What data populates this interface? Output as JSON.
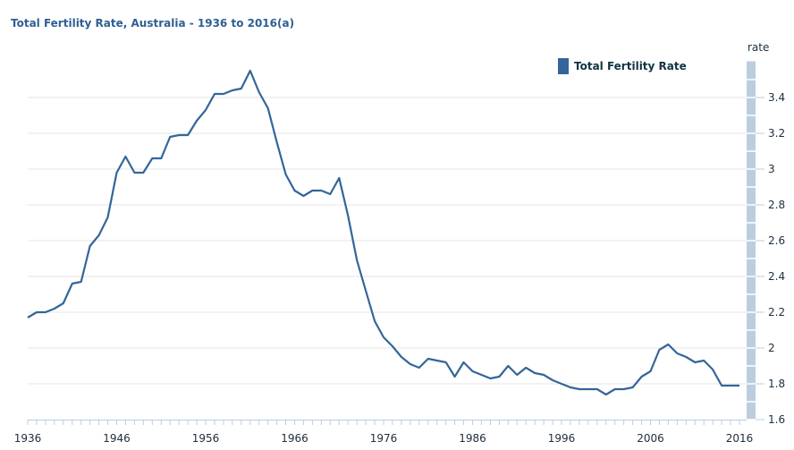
{
  "chart_data": {
    "type": "line",
    "title": "Total Fertility Rate, Australia - 1936 to 2016(a)",
    "ylabel": "rate",
    "xlim": [
      1936,
      2016
    ],
    "ylim": [
      1.6,
      3.6
    ],
    "x_tick_labels": [
      "1936",
      "1946",
      "1956",
      "1966",
      "1976",
      "1986",
      "1996",
      "2006",
      "2016"
    ],
    "y_tick_labels": [
      "1.6",
      "1.8",
      "2",
      "2.2",
      "2.4",
      "2.6",
      "2.8",
      "3",
      "3.2",
      "3.4"
    ],
    "grid": true,
    "legend_placement": "top-right",
    "colors": {
      "line": "#336699",
      "title": "#2e5f94",
      "axis_band": "#bccddf"
    },
    "series": [
      {
        "name": "Total Fertility Rate",
        "x": [
          1936,
          1937,
          1938,
          1939,
          1940,
          1941,
          1942,
          1943,
          1944,
          1945,
          1946,
          1947,
          1948,
          1949,
          1950,
          1951,
          1952,
          1953,
          1954,
          1955,
          1956,
          1957,
          1958,
          1959,
          1960,
          1961,
          1962,
          1963,
          1964,
          1965,
          1966,
          1967,
          1968,
          1969,
          1970,
          1971,
          1972,
          1973,
          1974,
          1975,
          1976,
          1977,
          1978,
          1979,
          1980,
          1981,
          1982,
          1983,
          1984,
          1985,
          1986,
          1987,
          1988,
          1989,
          1990,
          1991,
          1992,
          1993,
          1994,
          1995,
          1996,
          1997,
          1998,
          1999,
          2000,
          2001,
          2002,
          2003,
          2004,
          2005,
          2006,
          2007,
          2008,
          2009,
          2010,
          2011,
          2012,
          2013,
          2014,
          2015,
          2016
        ],
        "values": [
          2.17,
          2.2,
          2.2,
          2.22,
          2.25,
          2.36,
          2.37,
          2.57,
          2.63,
          2.73,
          2.98,
          3.07,
          2.98,
          2.98,
          3.06,
          3.06,
          3.18,
          3.19,
          3.19,
          3.27,
          3.33,
          3.42,
          3.42,
          3.44,
          3.45,
          3.55,
          3.43,
          3.34,
          3.15,
          2.97,
          2.88,
          2.85,
          2.88,
          2.88,
          2.86,
          2.95,
          2.74,
          2.49,
          2.32,
          2.15,
          2.06,
          2.01,
          1.95,
          1.91,
          1.89,
          1.94,
          1.93,
          1.92,
          1.84,
          1.92,
          1.87,
          1.85,
          1.83,
          1.84,
          1.9,
          1.85,
          1.89,
          1.86,
          1.85,
          1.82,
          1.8,
          1.78,
          1.77,
          1.77,
          1.77,
          1.74,
          1.77,
          1.77,
          1.78,
          1.84,
          1.87,
          1.99,
          2.02,
          1.97,
          1.95,
          1.92,
          1.93,
          1.88,
          1.79,
          1.79,
          1.79
        ]
      }
    ]
  }
}
